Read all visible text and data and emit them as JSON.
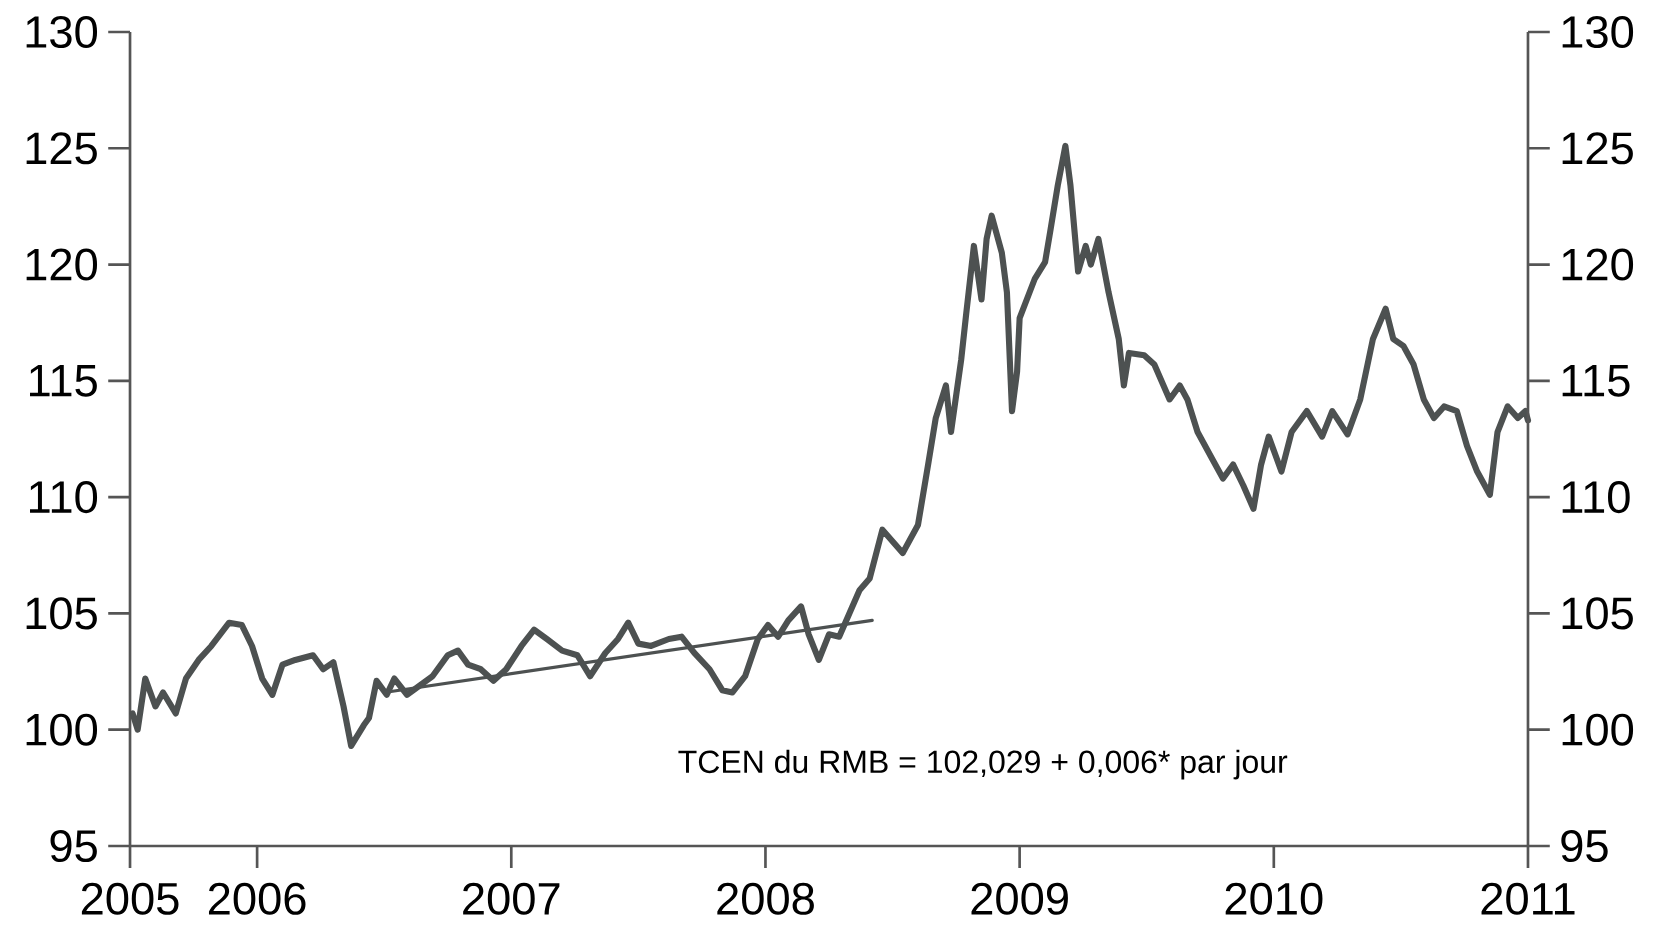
{
  "chart_data": {
    "type": "line",
    "annotations": [
      "TCEN du RMB = 102,029 + 0,006* par jour"
    ],
    "xlim": [
      2005.5,
      2011
    ],
    "xticks": [
      {
        "value": 2005.5,
        "label": "2005"
      },
      2006,
      2007,
      2008,
      2009,
      2010,
      2011
    ],
    "ylim": [
      95,
      130
    ],
    "yticks": [
      95,
      100,
      105,
      110,
      115,
      120,
      125,
      130
    ],
    "y2lim": [
      95,
      130
    ],
    "y2ticks": [
      95,
      100,
      105,
      110,
      115,
      120,
      125,
      130
    ],
    "marker": "none",
    "line_style": "solid",
    "series": [
      {
        "color": "#4d5151",
        "x": [
          2005.51,
          2005.53,
          2005.56,
          2005.6,
          2005.63,
          2005.68,
          2005.72,
          2005.77,
          2005.82,
          2005.89,
          2005.94,
          2005.98,
          2006.02,
          2006.06,
          2006.1,
          2006.15,
          2006.22,
          2006.26,
          2006.3,
          2006.34,
          2006.37,
          2006.42,
          2006.44,
          2006.47,
          2006.51,
          2006.54,
          2006.59,
          2006.64,
          2006.69,
          2006.75,
          2006.79,
          2006.83,
          2006.88,
          2006.93,
          2006.98,
          2007.04,
          2007.09,
          2007.14,
          2007.2,
          2007.26,
          2007.31,
          2007.37,
          2007.42,
          2007.46,
          2007.5,
          2007.55,
          2007.62,
          2007.67,
          2007.72,
          2007.78,
          2007.83,
          2007.87,
          2007.92,
          2007.97,
          2008.01,
          2008.05,
          2008.09,
          2008.14,
          2008.17,
          2008.21,
          2008.25,
          2008.29,
          2008.33,
          2008.37,
          2008.41,
          2008.46,
          2008.54,
          2008.6,
          2008.64,
          2008.67,
          2008.71,
          2008.73,
          2008.77,
          2008.79,
          2008.82,
          2008.85,
          2008.87,
          2008.89,
          2008.93,
          2008.95,
          2008.97,
          2008.99,
          2009.0,
          2009.06,
          2009.1,
          2009.12,
          2009.15,
          2009.18,
          2009.2,
          2009.23,
          2009.26,
          2009.28,
          2009.31,
          2009.35,
          2009.39,
          2009.41,
          2009.43,
          2009.49,
          2009.53,
          2009.59,
          2009.63,
          2009.66,
          2009.7,
          2009.76,
          2009.8,
          2009.84,
          2009.88,
          2009.92,
          2009.95,
          2009.98,
          2010.03,
          2010.07,
          2010.13,
          2010.19,
          2010.23,
          2010.29,
          2010.34,
          2010.39,
          2010.44,
          2010.47,
          2010.51,
          2010.55,
          2010.59,
          2010.63,
          2010.67,
          2010.72,
          2010.76,
          2010.8,
          2010.85,
          2010.88,
          2010.92,
          2010.96,
          2010.99,
          2011.0
        ],
        "values": [
          100.7,
          100.0,
          102.2,
          101.0,
          101.6,
          100.7,
          102.2,
          103.0,
          103.6,
          104.6,
          104.5,
          103.6,
          102.2,
          101.5,
          102.8,
          103.0,
          103.2,
          102.6,
          102.9,
          101.0,
          99.3,
          100.2,
          100.5,
          102.1,
          101.5,
          102.2,
          101.5,
          101.9,
          102.3,
          103.2,
          103.4,
          102.8,
          102.6,
          102.1,
          102.6,
          103.6,
          104.3,
          103.9,
          103.4,
          103.2,
          102.3,
          103.3,
          103.9,
          104.6,
          103.7,
          103.6,
          103.9,
          104.0,
          103.3,
          102.6,
          101.7,
          101.6,
          102.3,
          103.9,
          104.5,
          104.0,
          104.7,
          105.3,
          104.1,
          103.0,
          104.1,
          104.0,
          105.0,
          106.0,
          106.5,
          108.6,
          107.6,
          108.8,
          111.4,
          113.4,
          114.8,
          112.8,
          115.9,
          117.9,
          120.8,
          118.5,
          121.1,
          122.1,
          120.5,
          118.8,
          113.7,
          115.4,
          117.7,
          119.4,
          120.1,
          121.4,
          123.4,
          125.1,
          123.4,
          119.7,
          120.8,
          120.0,
          121.1,
          118.8,
          116.8,
          114.8,
          116.2,
          116.1,
          115.7,
          114.2,
          114.8,
          114.2,
          112.8,
          111.6,
          110.8,
          111.4,
          110.5,
          109.5,
          111.4,
          112.6,
          111.1,
          112.8,
          113.7,
          112.6,
          113.7,
          112.7,
          114.2,
          116.8,
          118.1,
          116.8,
          116.5,
          115.7,
          114.2,
          113.4,
          113.9,
          113.7,
          112.2,
          111.1,
          110.1,
          112.8,
          113.9,
          113.4,
          113.7,
          113.3
        ]
      },
      {
        "type": "line",
        "color": "#4d5151",
        "x": [
          2006.5,
          2008.42
        ],
        "values": [
          101.6,
          104.7
        ]
      }
    ]
  }
}
